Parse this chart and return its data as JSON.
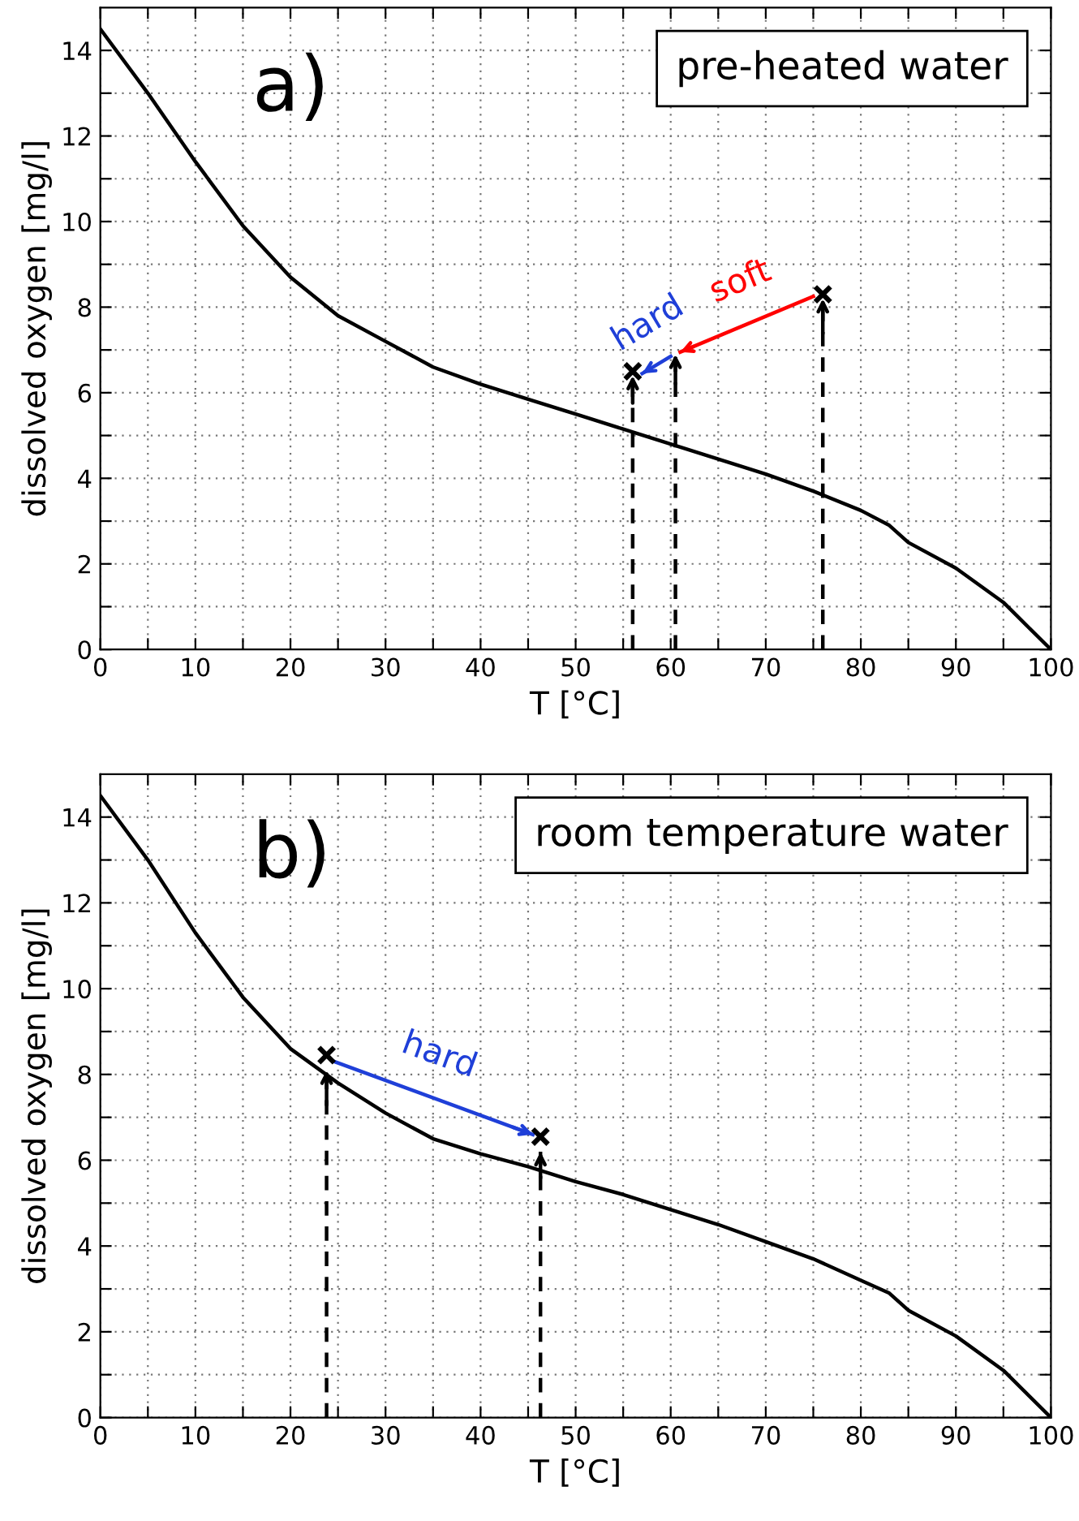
{
  "chart_data": [
    {
      "type": "line",
      "xlabel": "T [°C]",
      "ylabel": "dissolved oxygen [mg/l]",
      "xlim": [
        0,
        100
      ],
      "ylim": [
        0,
        15
      ],
      "xticks": [
        0,
        {
          "value": 5,
          "label": null
        },
        10,
        {
          "value": 15,
          "label": null
        },
        20,
        {
          "value": 25,
          "label": null
        },
        30,
        {
          "value": 35,
          "label": null
        },
        40,
        {
          "value": 45,
          "label": null
        },
        50,
        {
          "value": 55,
          "label": null
        },
        60,
        {
          "value": 65,
          "label": null
        },
        70,
        {
          "value": 75,
          "label": null
        },
        80,
        {
          "value": 85,
          "label": null
        },
        90,
        {
          "value": 95,
          "label": null
        },
        100
      ],
      "yticks": [
        0,
        {
          "value": 1,
          "label": null
        },
        2,
        {
          "value": 3,
          "label": null
        },
        4,
        {
          "value": 5,
          "label": null
        },
        6,
        {
          "value": 7,
          "label": null
        },
        8,
        {
          "value": 9,
          "label": null
        },
        10,
        {
          "value": 11,
          "label": null
        },
        12,
        {
          "value": 13,
          "label": null
        },
        14
      ],
      "grid": true,
      "legend": false,
      "series": [
        {
          "color": "#000000",
          "x": [
            0,
            5,
            10,
            15,
            20,
            25,
            30,
            35,
            40,
            45,
            50,
            55,
            60,
            65,
            70,
            75,
            80,
            83,
            85,
            90,
            95,
            100
          ],
          "values": [
            14.5,
            13.0,
            11.4,
            9.9,
            8.7,
            7.8,
            7.2,
            6.6,
            6.2,
            5.85,
            5.5,
            5.15,
            4.8,
            4.45,
            4.1,
            3.7,
            3.25,
            2.9,
            2.5,
            1.9,
            1.1,
            0
          ]
        },
        {
          "type": "scatter",
          "color": "#000000",
          "marker": "cross",
          "x": [
            56,
            76
          ],
          "values": [
            6.5,
            8.3
          ]
        },
        {
          "type": "line",
          "color": "#000000",
          "line_style": "dashed",
          "x": [
            56,
            56
          ],
          "values": [
            0,
            6.4
          ]
        },
        {
          "type": "line",
          "color": "#000000",
          "line_style": "dashed",
          "x": [
            60.5,
            60.5
          ],
          "values": [
            0,
            6.9
          ]
        },
        {
          "type": "line",
          "color": "#000000",
          "line_style": "dashed",
          "x": [
            76,
            76
          ],
          "values": [
            0,
            8.2
          ]
        },
        {
          "type": "line",
          "color": "#ff0000",
          "x": [
            75,
            61
          ],
          "values": [
            8.25,
            6.95
          ]
        },
        {
          "type": "line",
          "color": "#1f3fd8",
          "x": [
            60,
            57
          ],
          "values": [
            6.85,
            6.45
          ]
        }
      ],
      "annotations": [
        "a)",
        "pre-heated water",
        "soft",
        "hard"
      ]
    },
    {
      "type": "line",
      "xlabel": "T [°C]",
      "ylabel": "dissolved oxygen [mg/l]",
      "xlim": [
        0,
        100
      ],
      "ylim": [
        0,
        15
      ],
      "xticks": [
        0,
        {
          "value": 5,
          "label": null
        },
        10,
        {
          "value": 15,
          "label": null
        },
        20,
        {
          "value": 25,
          "label": null
        },
        30,
        {
          "value": 35,
          "label": null
        },
        40,
        {
          "value": 45,
          "label": null
        },
        50,
        {
          "value": 55,
          "label": null
        },
        60,
        {
          "value": 65,
          "label": null
        },
        70,
        {
          "value": 75,
          "label": null
        },
        80,
        {
          "value": 85,
          "label": null
        },
        90,
        {
          "value": 95,
          "label": null
        },
        100
      ],
      "yticks": [
        0,
        {
          "value": 1,
          "label": null
        },
        2,
        {
          "value": 3,
          "label": null
        },
        4,
        {
          "value": 5,
          "label": null
        },
        6,
        {
          "value": 7,
          "label": null
        },
        8,
        {
          "value": 9,
          "label": null
        },
        10,
        {
          "value": 11,
          "label": null
        },
        12,
        {
          "value": 13,
          "label": null
        },
        14
      ],
      "grid": true,
      "legend": false,
      "series": [
        {
          "color": "#000000",
          "x": [
            0,
            5,
            10,
            15,
            20,
            25,
            30,
            35,
            40,
            45,
            50,
            55,
            60,
            65,
            70,
            75,
            80,
            83,
            85,
            90,
            95,
            100
          ],
          "values": [
            14.5,
            13.0,
            11.3,
            9.8,
            8.6,
            7.8,
            7.1,
            6.5,
            6.15,
            5.85,
            5.5,
            5.2,
            4.85,
            4.5,
            4.1,
            3.7,
            3.2,
            2.9,
            2.5,
            1.9,
            1.1,
            0
          ]
        },
        {
          "type": "scatter",
          "color": "#000000",
          "marker": "cross",
          "x": [
            23.8,
            46.3
          ],
          "values": [
            8.45,
            6.55
          ]
        },
        {
          "type": "line",
          "color": "#000000",
          "line_style": "dashed",
          "x": [
            23.8,
            23.8
          ],
          "values": [
            0,
            8.1
          ]
        },
        {
          "type": "line",
          "color": "#000000",
          "line_style": "dashed",
          "x": [
            46.3,
            46.3
          ],
          "values": [
            0,
            6.2
          ]
        },
        {
          "type": "line",
          "color": "#1f3fd8",
          "x": [
            24.6,
            45.5
          ],
          "values": [
            8.3,
            6.6
          ]
        }
      ],
      "annotations": [
        "b)",
        "room temperature water",
        "hard"
      ]
    }
  ]
}
